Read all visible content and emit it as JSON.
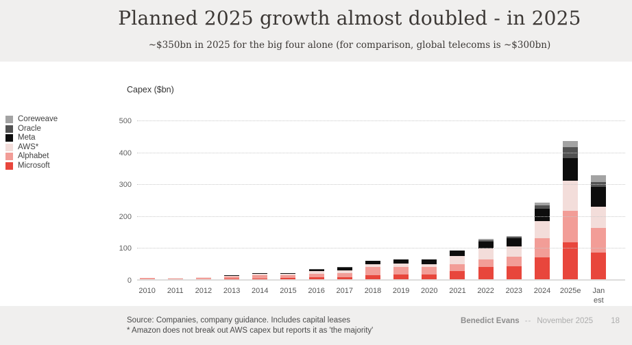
{
  "header": {
    "title": "Planned 2025 growth almost doubled - in 2025",
    "subtitle": "~$350bn in 2025 for the big four alone (for comparison, global telecoms is ~$300bn)"
  },
  "legend": {
    "items": [
      {
        "label": "Coreweave",
        "color": "#a3a3a3"
      },
      {
        "label": "Oracle",
        "color": "#525252"
      },
      {
        "label": "Meta",
        "color": "#0d0d0d"
      },
      {
        "label": "AWS*",
        "color": "#f3ddda"
      },
      {
        "label": "Alphabet",
        "color": "#f29d97"
      },
      {
        "label": "Microsoft",
        "color": "#e8463c"
      }
    ]
  },
  "chart_data": {
    "type": "bar",
    "stacked": true,
    "title": "Capex ($bn)",
    "xlabel": "",
    "ylabel": "Capex ($bn)",
    "ylim": [
      0,
      500
    ],
    "yticks": [
      0,
      100,
      200,
      300,
      400,
      500
    ],
    "grid": "dotted horizontal",
    "legend_position": "left",
    "categories": [
      "2010",
      "2011",
      "2012",
      "2013",
      "2014",
      "2015",
      "2016",
      "2017",
      "2018",
      "2019",
      "2020",
      "2021",
      "2022",
      "2023",
      "2024",
      "2025e",
      "Jan est\nfor 2025"
    ],
    "series": [
      {
        "name": "Microsoft",
        "color": "#e8463c",
        "values": [
          2,
          2,
          3,
          4,
          5,
          6,
          9,
          9,
          16,
          17,
          18,
          28,
          40,
          42,
          70,
          117,
          86
        ]
      },
      {
        "name": "Alphabet",
        "color": "#f29d97",
        "values": [
          4,
          3,
          3,
          7,
          10,
          9,
          10,
          13,
          25,
          24,
          22,
          22,
          25,
          30,
          60,
          100,
          78
        ]
      },
      {
        "name": "AWS*",
        "color": "#f3ddda",
        "values": [
          1,
          1,
          2,
          3,
          4,
          4,
          8,
          9,
          9,
          10,
          10,
          26,
          33,
          33,
          55,
          94,
          66
        ]
      },
      {
        "name": "Meta",
        "color": "#0d0d0d",
        "values": [
          0,
          1,
          1,
          2,
          2,
          3,
          5,
          7,
          11,
          14,
          14,
          17,
          22,
          25,
          39,
          72,
          62
        ]
      },
      {
        "name": "Oracle",
        "color": "#525252",
        "values": [
          0,
          0,
          0,
          0,
          0,
          0,
          2,
          2,
          0,
          0,
          0,
          0,
          5,
          5,
          9,
          33,
          15
        ]
      },
      {
        "name": "Coreweave",
        "color": "#a3a3a3",
        "values": [
          0,
          0,
          0,
          0,
          0,
          0,
          0,
          0,
          0,
          0,
          0,
          0,
          3,
          2,
          9,
          20,
          21
        ]
      }
    ]
  },
  "footer": {
    "source_line1": "Source: Companies, company guidance. Includes capital leases",
    "source_line2": "* Amazon does not break out AWS capex but reports it as 'the majority'",
    "credit_name": "Benedict Evans",
    "credit_dash": "--",
    "credit_date": "November 2025",
    "page_number": "18"
  }
}
